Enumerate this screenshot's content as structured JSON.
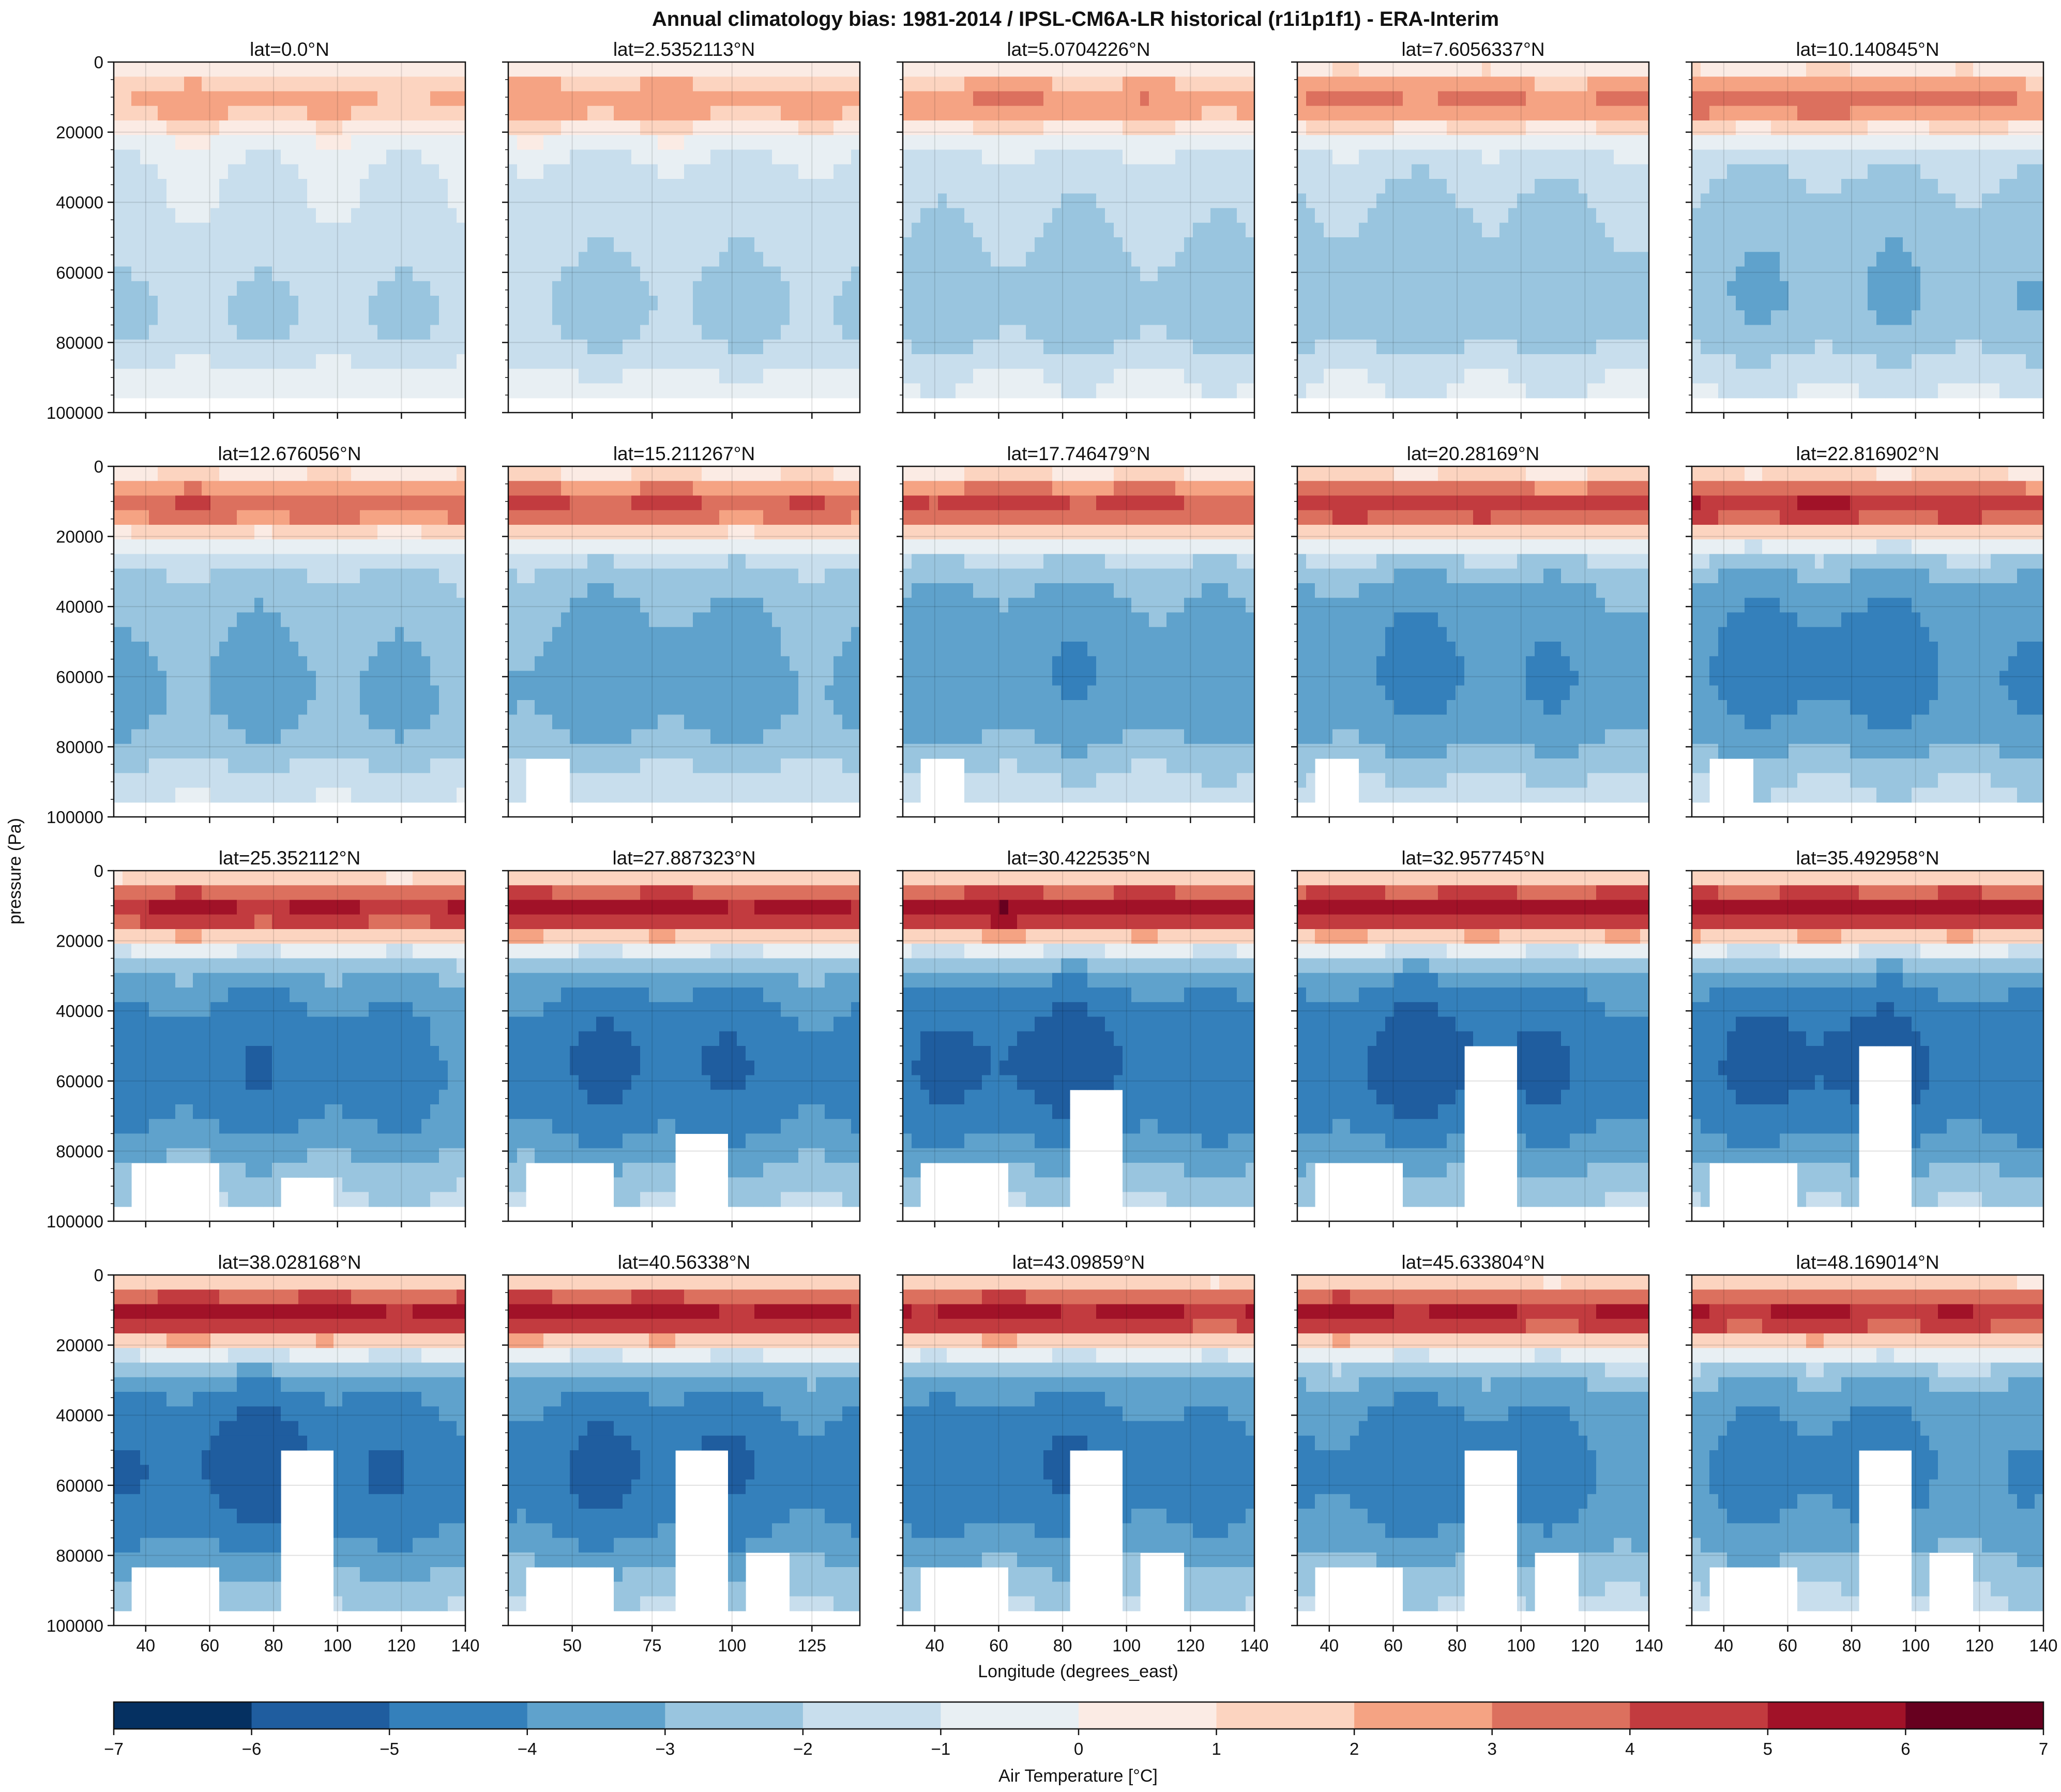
{
  "figure": {
    "title": "Annual climatology bias: 1981-2014 / IPSL-CM6A-LR historical (r1i1p1f1) - ERA-Interim",
    "ylabel": "pressure (Pa)",
    "xlabel": "Longitude (degrees_east)"
  },
  "colorbar": {
    "label": "Air Temperature [°C]",
    "ticks": [
      "−7",
      "−6",
      "−5",
      "−4",
      "−3",
      "−2",
      "−1",
      "0",
      "1",
      "2",
      "3",
      "4",
      "5",
      "6",
      "7"
    ],
    "levels": [
      -7,
      -6,
      -5,
      -4,
      -3,
      -2,
      -1,
      0,
      1,
      2,
      3,
      4,
      5,
      6,
      7
    ],
    "colors": [
      "#053061",
      "#1f5d9f",
      "#3480bb",
      "#5fa2cc",
      "#99c5df",
      "#c8deed",
      "#e8eff3",
      "#fbebe4",
      "#fcd4c0",
      "#f5a383",
      "#dc705e",
      "#c23b3f",
      "#a11228",
      "#67001f"
    ]
  },
  "chart_data": {
    "type": "heatmap",
    "rows": 4,
    "cols": 5,
    "ylim": [
      100000,
      0
    ],
    "yticks": [
      "0",
      "20000",
      "40000",
      "60000",
      "80000",
      "100000"
    ],
    "xticks_default": [
      "40",
      "60",
      "80",
      "100",
      "120",
      "140"
    ],
    "xticks_col2": [
      "50",
      "75",
      "100",
      "125"
    ],
    "panels": [
      {
        "title": "lat=0.0°N",
        "lat": 0.0
      },
      {
        "title": "lat=2.5352113°N",
        "lat": 2.5352113
      },
      {
        "title": "lat=5.0704226°N",
        "lat": 5.0704226
      },
      {
        "title": "lat=7.6056337°N",
        "lat": 7.6056337
      },
      {
        "title": "lat=10.140845°N",
        "lat": 10.140845
      },
      {
        "title": "lat=12.676056°N",
        "lat": 12.676056
      },
      {
        "title": "lat=15.211267°N",
        "lat": 15.211267
      },
      {
        "title": "lat=17.746479°N",
        "lat": 17.746479
      },
      {
        "title": "lat=20.28169°N",
        "lat": 20.28169
      },
      {
        "title": "lat=22.816902°N",
        "lat": 22.816902
      },
      {
        "title": "lat=25.352112°N",
        "lat": 25.352112
      },
      {
        "title": "lat=27.887323°N",
        "lat": 27.887323
      },
      {
        "title": "lat=30.422535°N",
        "lat": 30.422535
      },
      {
        "title": "lat=32.957745°N",
        "lat": 32.957745
      },
      {
        "title": "lat=35.492958°N",
        "lat": 35.492958
      },
      {
        "title": "lat=38.028168°N",
        "lat": 38.028168
      },
      {
        "title": "lat=40.56338°N",
        "lat": 40.56338
      },
      {
        "title": "lat=43.09859°N",
        "lat": 43.09859
      },
      {
        "title": "lat=45.633804°N",
        "lat": 45.633804
      },
      {
        "title": "lat=48.169014°N",
        "lat": 48.169014
      }
    ]
  }
}
